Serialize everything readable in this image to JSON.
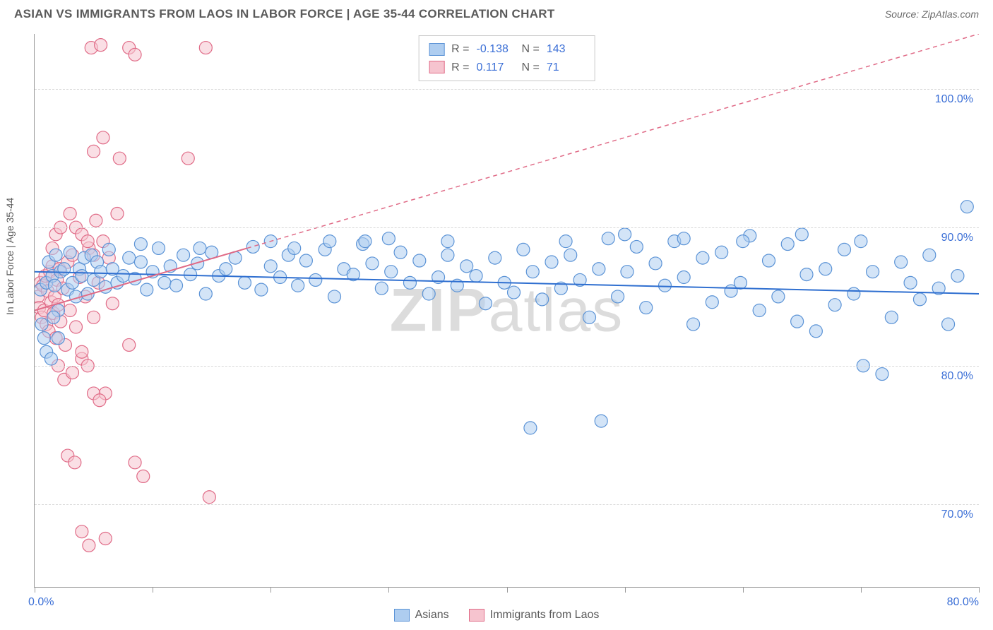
{
  "header": {
    "title": "ASIAN VS IMMIGRANTS FROM LAOS IN LABOR FORCE | AGE 35-44 CORRELATION CHART",
    "source": "Source: ZipAtlas.com"
  },
  "chart": {
    "type": "scatter",
    "ylabel": "In Labor Force | Age 35-44",
    "watermark": "ZIPatlas",
    "xlim": [
      0,
      80
    ],
    "ylim": [
      64,
      104
    ],
    "xticks": [
      0,
      10,
      20,
      30,
      40,
      50,
      60,
      70,
      80
    ],
    "xtick_labels": {
      "min": "0.0%",
      "max": "80.0%"
    },
    "yticks": [
      70,
      80,
      90,
      100
    ],
    "ytick_labels": [
      "70.0%",
      "80.0%",
      "90.0%",
      "100.0%"
    ],
    "grid_color": "#d8d8d8",
    "background_color": "#ffffff",
    "marker_radius": 9,
    "marker_opacity": 0.55,
    "series": {
      "asians": {
        "label": "Asians",
        "fill": "#aecdf0",
        "stroke": "#5b93d6",
        "R": "-0.138",
        "N": "143",
        "trend": {
          "x1": 0,
          "y1": 86.8,
          "x2": 80,
          "y2": 85.2,
          "color": "#2f6fd0",
          "width": 2,
          "dash": "none"
        },
        "points": [
          [
            0.5,
            85.5
          ],
          [
            0.6,
            83.0
          ],
          [
            0.8,
            82.0
          ],
          [
            1.0,
            86.0
          ],
          [
            1.2,
            87.5
          ],
          [
            1.5,
            86.5
          ],
          [
            1.7,
            85.8
          ],
          [
            1.8,
            88.0
          ],
          [
            2.0,
            84.0
          ],
          [
            2.2,
            86.8
          ],
          [
            2.5,
            87.0
          ],
          [
            2.8,
            85.5
          ],
          [
            3.0,
            88.2
          ],
          [
            3.2,
            86.0
          ],
          [
            3.5,
            85.0
          ],
          [
            3.8,
            87.0
          ],
          [
            4.0,
            86.5
          ],
          [
            4.2,
            87.8
          ],
          [
            4.5,
            85.2
          ],
          [
            4.8,
            88.0
          ],
          [
            5.0,
            86.2
          ],
          [
            5.3,
            87.5
          ],
          [
            5.6,
            86.8
          ],
          [
            6.0,
            85.7
          ],
          [
            6.3,
            88.4
          ],
          [
            6.6,
            87.0
          ],
          [
            7.0,
            86.0
          ],
          [
            7.5,
            86.5
          ],
          [
            8.0,
            87.8
          ],
          [
            8.5,
            86.3
          ],
          [
            9.0,
            87.5
          ],
          [
            9.5,
            85.5
          ],
          [
            10.0,
            86.8
          ],
          [
            10.5,
            88.5
          ],
          [
            11.0,
            86.0
          ],
          [
            11.5,
            87.2
          ],
          [
            12.0,
            85.8
          ],
          [
            12.6,
            88.0
          ],
          [
            13.2,
            86.6
          ],
          [
            13.8,
            87.4
          ],
          [
            14.5,
            85.2
          ],
          [
            15.0,
            88.2
          ],
          [
            15.6,
            86.5
          ],
          [
            16.2,
            87.0
          ],
          [
            17.0,
            87.8
          ],
          [
            17.8,
            86.0
          ],
          [
            18.5,
            88.6
          ],
          [
            19.2,
            85.5
          ],
          [
            20.0,
            87.2
          ],
          [
            20.8,
            86.4
          ],
          [
            21.5,
            88.0
          ],
          [
            22.3,
            85.8
          ],
          [
            23.0,
            87.6
          ],
          [
            23.8,
            86.2
          ],
          [
            24.6,
            88.4
          ],
          [
            25.4,
            85.0
          ],
          [
            26.2,
            87.0
          ],
          [
            27.0,
            86.6
          ],
          [
            27.8,
            88.8
          ],
          [
            28.6,
            87.4
          ],
          [
            29.4,
            85.6
          ],
          [
            30.2,
            86.8
          ],
          [
            31.0,
            88.2
          ],
          [
            31.8,
            86.0
          ],
          [
            32.6,
            87.6
          ],
          [
            33.4,
            85.2
          ],
          [
            34.2,
            86.4
          ],
          [
            35.0,
            88.0
          ],
          [
            35.8,
            85.8
          ],
          [
            36.6,
            87.2
          ],
          [
            37.4,
            86.5
          ],
          [
            38.2,
            84.5
          ],
          [
            39.0,
            87.8
          ],
          [
            39.8,
            86.0
          ],
          [
            40.6,
            85.3
          ],
          [
            41.4,
            88.4
          ],
          [
            42.2,
            86.8
          ],
          [
            43.0,
            84.8
          ],
          [
            43.8,
            87.5
          ],
          [
            44.6,
            85.6
          ],
          [
            45.4,
            88.0
          ],
          [
            46.2,
            86.2
          ],
          [
            47.0,
            83.5
          ],
          [
            47.8,
            87.0
          ],
          [
            48.6,
            89.2
          ],
          [
            49.4,
            85.0
          ],
          [
            50.2,
            86.8
          ],
          [
            51.0,
            88.6
          ],
          [
            51.8,
            84.2
          ],
          [
            52.6,
            87.4
          ],
          [
            53.4,
            85.8
          ],
          [
            54.2,
            89.0
          ],
          [
            55.0,
            86.4
          ],
          [
            55.8,
            83.0
          ],
          [
            56.6,
            87.8
          ],
          [
            57.4,
            84.6
          ],
          [
            58.2,
            88.2
          ],
          [
            59.0,
            85.4
          ],
          [
            59.8,
            86.0
          ],
          [
            60.6,
            89.4
          ],
          [
            61.4,
            84.0
          ],
          [
            62.2,
            87.6
          ],
          [
            63.0,
            85.0
          ],
          [
            63.8,
            88.8
          ],
          [
            64.6,
            83.2
          ],
          [
            65.4,
            86.6
          ],
          [
            66.2,
            82.5
          ],
          [
            67.0,
            87.0
          ],
          [
            67.8,
            84.4
          ],
          [
            68.6,
            88.4
          ],
          [
            69.4,
            85.2
          ],
          [
            70.2,
            80.0
          ],
          [
            71.0,
            86.8
          ],
          [
            71.8,
            79.4
          ],
          [
            72.6,
            83.5
          ],
          [
            73.4,
            87.5
          ],
          [
            74.2,
            86.0
          ],
          [
            75.0,
            84.8
          ],
          [
            75.8,
            88.0
          ],
          [
            76.6,
            85.6
          ],
          [
            77.4,
            83.0
          ],
          [
            78.2,
            86.5
          ],
          [
            79.0,
            91.5
          ],
          [
            42.0,
            75.5
          ],
          [
            48.0,
            76.0
          ],
          [
            9.0,
            88.8
          ],
          [
            14.0,
            88.5
          ],
          [
            22.0,
            88.5
          ],
          [
            28.0,
            89.0
          ],
          [
            2.0,
            82.0
          ],
          [
            1.0,
            81.0
          ],
          [
            1.4,
            80.5
          ],
          [
            1.6,
            83.5
          ],
          [
            60.0,
            89.0
          ],
          [
            55.0,
            89.2
          ],
          [
            50.0,
            89.5
          ],
          [
            45.0,
            89.0
          ],
          [
            65.0,
            89.5
          ],
          [
            70.0,
            89.0
          ],
          [
            35.0,
            89.0
          ],
          [
            30.0,
            89.2
          ],
          [
            25.0,
            89.0
          ],
          [
            20.0,
            89.0
          ]
        ]
      },
      "laos": {
        "label": "Immigrants from Laos",
        "fill": "#f6c4cf",
        "stroke": "#e06b87",
        "R": "0.117",
        "N": "71",
        "trend": {
          "x1": 0,
          "y1": 84.0,
          "x2": 80,
          "y2": 104.0,
          "solid_until_x": 18,
          "color": "#e06b87",
          "width": 2
        },
        "points": [
          [
            0.3,
            85.0
          ],
          [
            0.4,
            84.2
          ],
          [
            0.5,
            86.0
          ],
          [
            0.6,
            83.5
          ],
          [
            0.7,
            85.8
          ],
          [
            0.8,
            84.0
          ],
          [
            0.9,
            86.5
          ],
          [
            1.0,
            83.0
          ],
          [
            1.1,
            85.4
          ],
          [
            1.2,
            82.5
          ],
          [
            1.3,
            86.8
          ],
          [
            1.4,
            84.6
          ],
          [
            1.5,
            87.2
          ],
          [
            1.6,
            83.8
          ],
          [
            1.7,
            85.0
          ],
          [
            1.8,
            82.0
          ],
          [
            1.9,
            86.2
          ],
          [
            2.0,
            84.4
          ],
          [
            2.1,
            87.0
          ],
          [
            2.2,
            83.2
          ],
          [
            2.4,
            85.6
          ],
          [
            2.6,
            81.5
          ],
          [
            2.8,
            87.5
          ],
          [
            3.0,
            84.0
          ],
          [
            3.2,
            88.0
          ],
          [
            3.5,
            82.8
          ],
          [
            3.8,
            86.4
          ],
          [
            4.0,
            80.5
          ],
          [
            4.3,
            85.0
          ],
          [
            4.6,
            88.5
          ],
          [
            5.0,
            83.5
          ],
          [
            5.2,
            90.5
          ],
          [
            5.4,
            86.0
          ],
          [
            5.8,
            89.0
          ],
          [
            6.0,
            78.0
          ],
          [
            6.3,
            87.8
          ],
          [
            6.6,
            84.5
          ],
          [
            7.0,
            91.0
          ],
          [
            4.8,
            103.0
          ],
          [
            5.6,
            103.2
          ],
          [
            8.0,
            103.0
          ],
          [
            8.5,
            102.5
          ],
          [
            14.5,
            103.0
          ],
          [
            5.0,
            95.5
          ],
          [
            5.8,
            96.5
          ],
          [
            7.2,
            95.0
          ],
          [
            13.0,
            95.0
          ],
          [
            3.0,
            91.0
          ],
          [
            3.5,
            90.0
          ],
          [
            4.0,
            89.5
          ],
          [
            4.5,
            89.0
          ],
          [
            5.0,
            88.0
          ],
          [
            2.0,
            80.0
          ],
          [
            2.5,
            79.0
          ],
          [
            3.2,
            79.5
          ],
          [
            4.0,
            81.0
          ],
          [
            4.5,
            80.0
          ],
          [
            5.0,
            78.0
          ],
          [
            5.5,
            77.5
          ],
          [
            8.5,
            73.0
          ],
          [
            9.2,
            72.0
          ],
          [
            14.8,
            70.5
          ],
          [
            2.8,
            73.5
          ],
          [
            3.4,
            73.0
          ],
          [
            4.0,
            68.0
          ],
          [
            4.6,
            67.0
          ],
          [
            6.0,
            67.5
          ],
          [
            1.5,
            88.5
          ],
          [
            1.8,
            89.5
          ],
          [
            2.2,
            90.0
          ],
          [
            8.0,
            81.5
          ]
        ]
      }
    }
  },
  "footer_legend": [
    {
      "key": "asians"
    },
    {
      "key": "laos"
    }
  ]
}
